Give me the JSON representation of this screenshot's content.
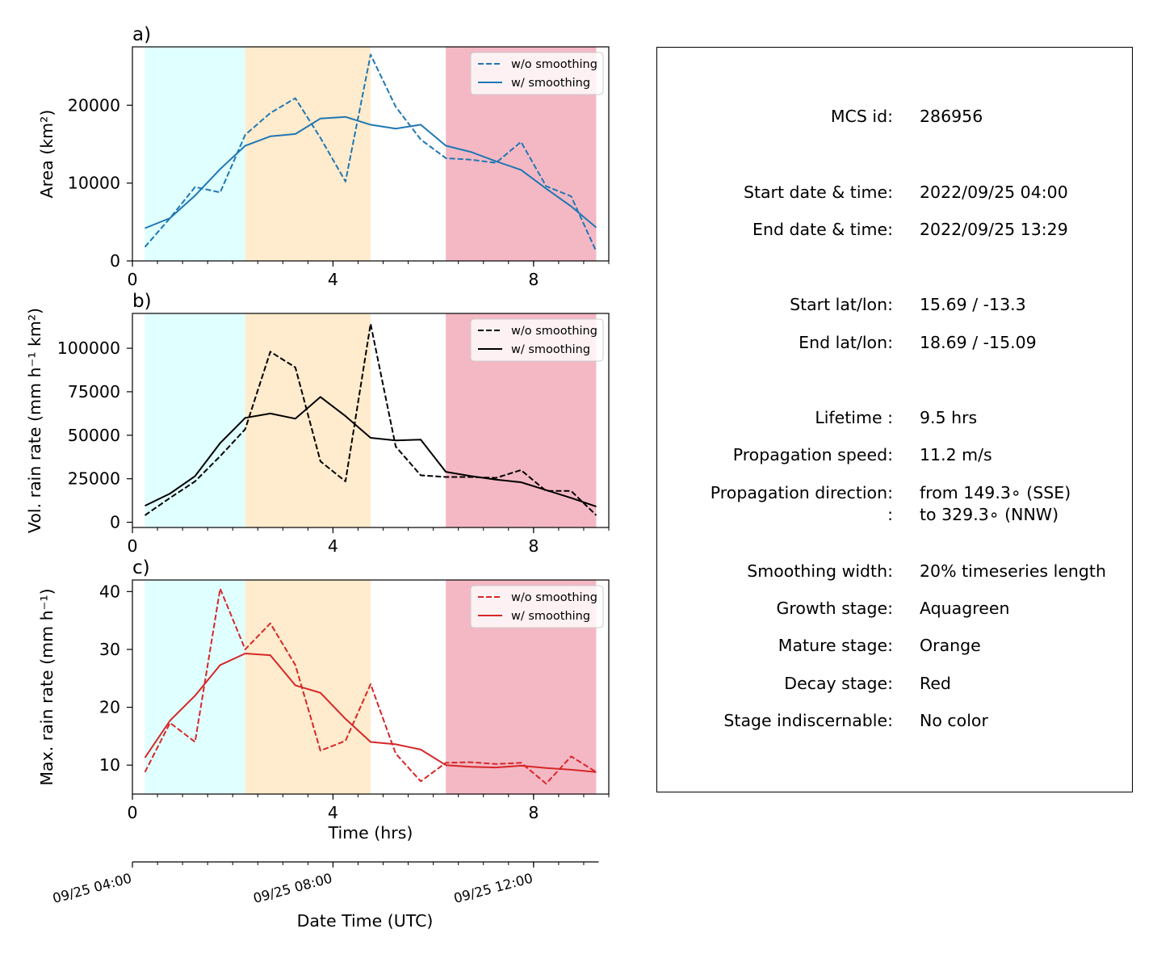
{
  "chart_data": [
    {
      "type": "line",
      "panel_label": "a)",
      "ylabel": "Area  (km²)",
      "xlim": [
        0,
        9.5
      ],
      "ylim": [
        0,
        27500
      ],
      "yticks": [
        0,
        10000,
        20000
      ],
      "ytick_labels": [
        "0",
        "10000",
        "20000"
      ],
      "xticks": [
        0,
        4,
        8
      ],
      "xtick_labels": [
        "0",
        "4",
        "8"
      ],
      "legend_position": "top-right",
      "series": [
        {
          "name": "w/o smoothing",
          "style": "dashed",
          "color": "#1f77b4",
          "x": [
            0.25,
            0.75,
            1.25,
            1.75,
            2.25,
            2.75,
            3.25,
            3.75,
            4.25,
            4.75,
            5.25,
            5.75,
            6.25,
            6.75,
            7.25,
            7.75,
            8.25,
            8.75,
            9.25
          ],
          "y": [
            1800,
            5500,
            9500,
            8800,
            16200,
            19000,
            20900,
            15800,
            10200,
            26500,
            19800,
            15600,
            13200,
            13000,
            12600,
            15300,
            9600,
            8300,
            1200
          ]
        },
        {
          "name": "w/ smoothing",
          "style": "solid",
          "color": "#1f77b4",
          "x": [
            0.25,
            0.75,
            1.25,
            1.75,
            2.25,
            2.75,
            3.25,
            3.75,
            4.25,
            4.75,
            5.25,
            5.75,
            6.25,
            6.75,
            7.25,
            7.75,
            8.25,
            8.75,
            9.25
          ],
          "y": [
            4200,
            5500,
            8400,
            11800,
            14800,
            16000,
            16300,
            18300,
            18500,
            17500,
            17000,
            17500,
            14800,
            14000,
            12800,
            11700,
            9300,
            7000,
            4300
          ]
        }
      ]
    },
    {
      "type": "line",
      "panel_label": "b)",
      "ylabel": "Vol. rain rate (mm h⁻¹ km²)",
      "xlim": [
        0,
        9.5
      ],
      "ylim": [
        -3000,
        120000
      ],
      "yticks": [
        0,
        25000,
        50000,
        75000,
        100000
      ],
      "ytick_labels": [
        "0",
        "25000",
        "50000",
        "75000",
        "100000"
      ],
      "xticks": [
        0,
        4,
        8
      ],
      "xtick_labels": [
        "0",
        "4",
        "8"
      ],
      "legend_position": "top-right",
      "series": [
        {
          "name": "w/o smoothing",
          "style": "dashed",
          "color": "#000000",
          "x": [
            0.25,
            0.75,
            1.25,
            1.75,
            2.25,
            2.75,
            3.25,
            3.75,
            4.25,
            4.75,
            5.25,
            5.75,
            6.25,
            6.75,
            7.25,
            7.75,
            8.25,
            8.75,
            9.25
          ],
          "y": [
            4000,
            14000,
            23500,
            38000,
            53500,
            98000,
            89000,
            35000,
            23500,
            114000,
            43500,
            27000,
            26000,
            26000,
            25500,
            30000,
            18000,
            18000,
            4000
          ]
        },
        {
          "name": "w/ smoothing",
          "style": "solid",
          "color": "#000000",
          "x": [
            0.25,
            0.75,
            1.25,
            1.75,
            2.25,
            2.75,
            3.25,
            3.75,
            4.25,
            4.75,
            5.25,
            5.75,
            6.25,
            6.75,
            7.25,
            7.75,
            8.25,
            8.75,
            9.25
          ],
          "y": [
            9500,
            16500,
            26500,
            45500,
            60000,
            62500,
            59500,
            72000,
            61000,
            48500,
            47000,
            47500,
            29000,
            26500,
            24500,
            23000,
            18500,
            14000,
            9000
          ]
        }
      ]
    },
    {
      "type": "line",
      "panel_label": "c)",
      "ylabel": "Max. rain rate  (mm h⁻¹)",
      "xlabel": "Time (hrs)",
      "xlim": [
        0,
        9.5
      ],
      "ylim": [
        5,
        42
      ],
      "yticks": [
        10,
        20,
        30,
        40
      ],
      "ytick_labels": [
        "10",
        "20",
        "30",
        "40"
      ],
      "xticks": [
        0,
        4,
        8
      ],
      "xtick_labels": [
        "0",
        "4",
        "8"
      ],
      "legend_position": "top-right",
      "series": [
        {
          "name": "w/o smoothing",
          "style": "dashed",
          "color": "#d62728",
          "x": [
            0.25,
            0.75,
            1.25,
            1.75,
            2.25,
            2.75,
            3.25,
            3.75,
            4.25,
            4.75,
            5.25,
            5.75,
            6.25,
            6.75,
            7.25,
            7.75,
            8.25,
            8.75,
            9.25
          ],
          "y": [
            8.8,
            17.3,
            14.0,
            40.5,
            30.0,
            34.5,
            27.3,
            12.5,
            14.2,
            24.0,
            12.0,
            7.2,
            10.4,
            10.5,
            10.2,
            10.4,
            6.8,
            11.5,
            8.8
          ]
        },
        {
          "name": "w/ smoothing",
          "style": "solid",
          "color": "#d62728",
          "x": [
            0.25,
            0.75,
            1.25,
            1.75,
            2.25,
            2.75,
            3.25,
            3.75,
            4.25,
            4.75,
            5.25,
            5.75,
            6.25,
            6.75,
            7.25,
            7.75,
            8.25,
            8.75,
            9.25
          ],
          "y": [
            11.3,
            17.7,
            22.0,
            27.3,
            29.3,
            29.0,
            23.8,
            22.5,
            18.0,
            14.0,
            13.6,
            12.7,
            10.0,
            9.7,
            9.6,
            9.9,
            9.5,
            9.2,
            8.8
          ]
        }
      ]
    }
  ],
  "stages": [
    {
      "name": "Growth stage",
      "start": 0.25,
      "end": 2.25,
      "color": "#e0ffff"
    },
    {
      "name": "Mature stage",
      "start": 2.25,
      "end": 4.75,
      "color": "#ffebcd"
    },
    {
      "name": "Decay stage",
      "start": 6.25,
      "end": 9.25,
      "color": "#f4b8c4"
    }
  ],
  "date_axis": {
    "xlabel": "Date Time (UTC)",
    "minor_tick_spacing_hrs": 0.5,
    "range_hrs": [
      0,
      9.25
    ],
    "ticks": [
      {
        "hrs": 0,
        "label": "09/25 04:00"
      },
      {
        "hrs": 4,
        "label": "09/25 08:00"
      },
      {
        "hrs": 8,
        "label": "09/25 12:00"
      }
    ]
  },
  "info": [
    {
      "key": "MCS id:",
      "lines": [
        "286956"
      ],
      "gap_before": 0
    },
    {
      "key": "Start date & time:",
      "lines": [
        "2022/09/25 04:00"
      ],
      "gap_before": 1
    },
    {
      "key": "End date & time:",
      "lines": [
        "2022/09/25 13:29"
      ],
      "gap_before": 0
    },
    {
      "key": "Start lat/lon:",
      "lines": [
        "15.69 / -13.3"
      ],
      "gap_before": 1
    },
    {
      "key": "End lat/lon:",
      "lines": [
        "18.69 / -15.09"
      ],
      "gap_before": 0
    },
    {
      "key": "Lifetime :",
      "lines": [
        "9.5 hrs"
      ],
      "gap_before": 1
    },
    {
      "key": "Propagation speed:",
      "lines": [
        "11.2 m/s"
      ],
      "gap_before": 0
    },
    {
      "key": "Propagation direction:",
      "lines": [
        "from 149.3∘ (SSE)"
      ],
      "gap_before": 0
    },
    {
      "key": ":",
      "lines": [
        "to   329.3∘ (NNW)"
      ],
      "gap_before": 0
    },
    {
      "key": "Smoothing width:",
      "lines": [
        "20% timeseries length"
      ],
      "gap_before": 0.5
    },
    {
      "key": "Growth stage:",
      "lines": [
        "Aquagreen"
      ],
      "gap_before": 0
    },
    {
      "key": "Mature stage:",
      "lines": [
        "Orange"
      ],
      "gap_before": 0
    },
    {
      "key": "Decay stage:",
      "lines": [
        "Red"
      ],
      "gap_before": 0
    },
    {
      "key": "Stage indiscernable:",
      "lines": [
        "No color"
      ],
      "gap_before": 0
    }
  ]
}
